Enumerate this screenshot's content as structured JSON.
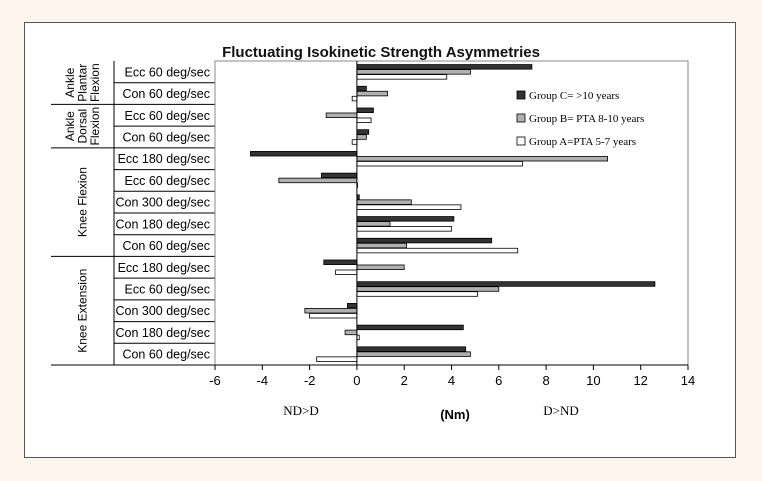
{
  "chart_data": {
    "type": "bar",
    "orientation": "horizontal",
    "title": "Fluctuating Isokinetic Strength Asymmetries",
    "xlabel": "(Nm)",
    "xlim": [
      -6,
      14
    ],
    "xticks": [
      -6,
      -4,
      -2,
      0,
      2,
      4,
      6,
      8,
      10,
      12,
      14
    ],
    "annotations": {
      "left": "ND>D",
      "right": "D>ND"
    },
    "groups": [
      {
        "label": "Ankle Plantar Flexion",
        "categories": [
          "Ecc 60 deg/sec",
          "Con 60 deg/sec"
        ]
      },
      {
        "label": "Ankle Dorsal Flexion",
        "categories": [
          "Ecc 60 deg/sec",
          "Con 60 deg/sec"
        ]
      },
      {
        "label": "Knee Flexion",
        "categories": [
          "Ecc 180 deg/sec",
          "Ecc 60 deg/sec",
          "Con 300 deg/sec",
          "Con 180 deg/sec",
          "Con 60 deg/sec"
        ]
      },
      {
        "label": "Knee Extension",
        "categories": [
          "Ecc 180 deg/sec",
          "Ecc 60 deg/sec",
          "Con 300 deg/sec",
          "Con 180 deg/sec",
          "Con 60 deg/sec"
        ]
      }
    ],
    "series": [
      {
        "name": "Group C= >10 years",
        "color": "#333333",
        "values": [
          7.4,
          0.4,
          0.7,
          0.5,
          -4.5,
          -1.5,
          0.1,
          4.1,
          5.7,
          -1.4,
          12.6,
          -0.4,
          4.5,
          4.6
        ]
      },
      {
        "name": "Group B= PTA 8-10 years",
        "color": "#b0b0b0",
        "values": [
          4.8,
          1.3,
          -1.3,
          0.4,
          10.6,
          -3.3,
          2.3,
          1.4,
          2.1,
          2.0,
          6.0,
          -2.2,
          -0.5,
          4.8
        ]
      },
      {
        "name": "Group A=PTA 5-7 years",
        "color": "#ffffff",
        "values": [
          3.8,
          -0.2,
          0.6,
          -0.2,
          7.0,
          0.0,
          4.4,
          4.0,
          6.8,
          -0.9,
          5.1,
          -2.0,
          0.1,
          -1.7
        ]
      }
    ],
    "legend_position": "right",
    "grid": false
  }
}
